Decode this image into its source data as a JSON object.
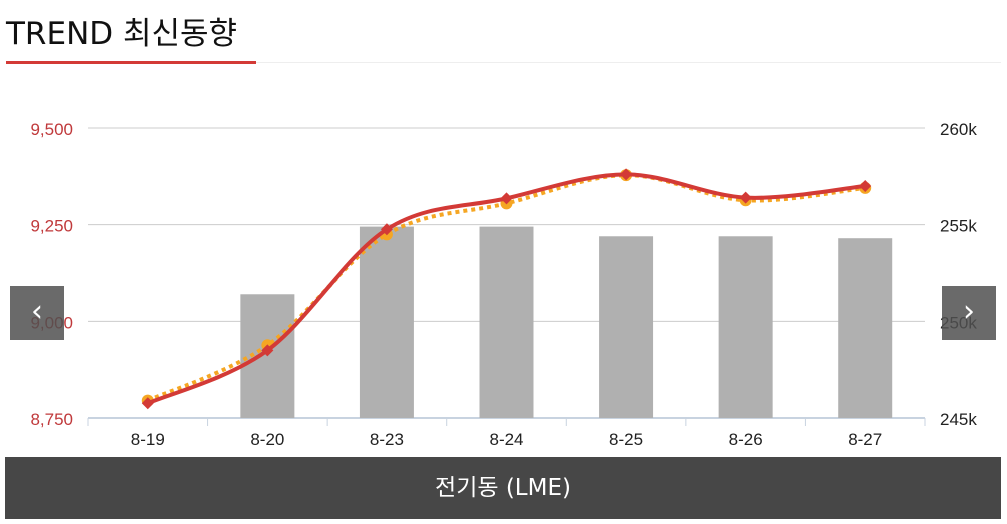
{
  "header": {
    "title": "TREND 최신동향"
  },
  "nav": {
    "prev_icon": "‹",
    "next_icon": "›"
  },
  "footer": {
    "label": "전기동 (LME)"
  },
  "colors": {
    "accent": "#d33a36",
    "bar": "#b0b0b0",
    "dotted": "#f5a623",
    "left_axis": "#c0393b"
  },
  "chart_data": {
    "type": "bar",
    "categories": [
      "8-19",
      "8-20",
      "8-23",
      "8-24",
      "8-25",
      "8-26",
      "8-27"
    ],
    "left_axis": {
      "ticks": [
        8750,
        9000,
        9250,
        9500
      ],
      "tick_labels": [
        "8,750",
        "9,000",
        "9,250",
        "9,500"
      ],
      "ylim": [
        8750,
        9500
      ]
    },
    "right_axis": {
      "ticks": [
        245000,
        250000,
        255000,
        260000
      ],
      "tick_labels": [
        "245k",
        "250k",
        "255k",
        "260k"
      ],
      "ylim": [
        245000,
        260000
      ]
    },
    "series": [
      {
        "type": "bar",
        "axis": "right",
        "values": [
          null,
          251400,
          254900,
          254900,
          254400,
          254400,
          254300
        ]
      },
      {
        "type": "line",
        "style": "solid",
        "axis": "left",
        "values": [
          8788,
          8925,
          9238,
          9318,
          9380,
          9320,
          9350
        ]
      },
      {
        "type": "line",
        "style": "dotted",
        "axis": "left",
        "values": [
          8795,
          8938,
          9225,
          9305,
          9378,
          9313,
          9345
        ]
      }
    ],
    "grid": true
  }
}
